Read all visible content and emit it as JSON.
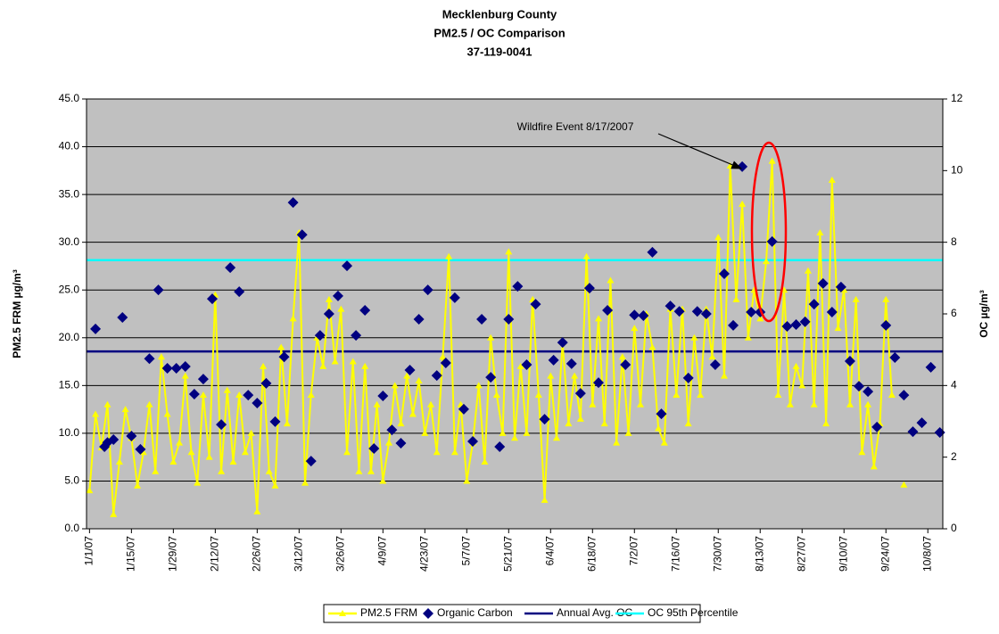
{
  "chart_data": {
    "type": "line",
    "title": [
      "Mecklenburg County",
      "PM2.5 / OC Comparison",
      "37-119-0041"
    ],
    "y_label": "PM2.5 FRM µg/m³",
    "y2_label": "OC µg/m³",
    "xlim": [
      "2006-12-31",
      "2007-10-13"
    ],
    "xticks": [
      {
        "value": "2007-01-01",
        "label": "1/1/07"
      },
      {
        "value": "2007-01-15",
        "label": "1/15/07"
      },
      {
        "value": "2007-01-29",
        "label": "1/29/07"
      },
      {
        "value": "2007-02-12",
        "label": "2/12/07"
      },
      {
        "value": "2007-02-26",
        "label": "2/26/07"
      },
      {
        "value": "2007-03-12",
        "label": "3/12/07"
      },
      {
        "value": "2007-03-26",
        "label": "3/26/07"
      },
      {
        "value": "2007-04-09",
        "label": "4/9/07"
      },
      {
        "value": "2007-04-23",
        "label": "4/23/07"
      },
      {
        "value": "2007-05-07",
        "label": "5/7/07"
      },
      {
        "value": "2007-05-21",
        "label": "5/21/07"
      },
      {
        "value": "2007-06-04",
        "label": "6/4/07"
      },
      {
        "value": "2007-06-18",
        "label": "6/18/07"
      },
      {
        "value": "2007-07-02",
        "label": "7/2/07"
      },
      {
        "value": "2007-07-16",
        "label": "7/16/07"
      },
      {
        "value": "2007-07-30",
        "label": "7/30/07"
      },
      {
        "value": "2007-08-13",
        "label": "8/13/07"
      },
      {
        "value": "2007-08-27",
        "label": "8/27/07"
      },
      {
        "value": "2007-09-10",
        "label": "9/10/07"
      },
      {
        "value": "2007-09-24",
        "label": "9/24/07"
      },
      {
        "value": "2007-10-08",
        "label": "10/8/07"
      }
    ],
    "ylim": [
      0,
      45
    ],
    "yticks": [
      {
        "value": 0,
        "label": "0.0"
      },
      {
        "value": 5,
        "label": "5.0"
      },
      {
        "value": 10,
        "label": "10.0"
      },
      {
        "value": 15,
        "label": "15.0"
      },
      {
        "value": 20,
        "label": "20.0"
      },
      {
        "value": 25,
        "label": "25.0"
      },
      {
        "value": 30,
        "label": "30.0"
      },
      {
        "value": 35,
        "label": "35.0"
      },
      {
        "value": 40,
        "label": "40.0"
      },
      {
        "value": 45,
        "label": "45.0"
      }
    ],
    "y2lim": [
      0,
      12
    ],
    "y2ticks": [
      0,
      2,
      4,
      6,
      8,
      10,
      12
    ],
    "grid": true,
    "legend": "bottom",
    "series": [
      {
        "name": "PM2.5 FRM",
        "type": "line",
        "marker": "triangle",
        "color": "#ffff00",
        "x": [
          "2007-01-01",
          "2007-01-03",
          "2007-01-05",
          "2007-01-07",
          "2007-01-09",
          "2007-01-11",
          "2007-01-13",
          "2007-01-15",
          "2007-01-17",
          "2007-01-19",
          "2007-01-21",
          "2007-01-23",
          "2007-01-25",
          "2007-01-27",
          "2007-01-29",
          "2007-01-31",
          "2007-02-02",
          "2007-02-04",
          "2007-02-06",
          "2007-02-08",
          "2007-02-10",
          "2007-02-12",
          "2007-02-14",
          "2007-02-16",
          "2007-02-18",
          "2007-02-20",
          "2007-02-22",
          "2007-02-24",
          "2007-02-26",
          "2007-02-28",
          "2007-03-02",
          "2007-03-04",
          "2007-03-06",
          "2007-03-08",
          "2007-03-10",
          "2007-03-12",
          "2007-03-14",
          "2007-03-16",
          "2007-03-18",
          "2007-03-20",
          "2007-03-22",
          "2007-03-24",
          "2007-03-26",
          "2007-03-28",
          "2007-03-30",
          "2007-04-01",
          "2007-04-03",
          "2007-04-05",
          "2007-04-07",
          "2007-04-09",
          "2007-04-11",
          "2007-04-13",
          "2007-04-15",
          "2007-04-17",
          "2007-04-19",
          "2007-04-21",
          "2007-04-23",
          "2007-04-25",
          "2007-04-27",
          "2007-04-29",
          "2007-05-01",
          "2007-05-03",
          "2007-05-05",
          "2007-05-07",
          "2007-05-09",
          "2007-05-11",
          "2007-05-13",
          "2007-05-15",
          "2007-05-17",
          "2007-05-19",
          "2007-05-21",
          "2007-05-23",
          "2007-05-25",
          "2007-05-27",
          "2007-05-29",
          "2007-05-31",
          "2007-06-02",
          "2007-06-04",
          "2007-06-06",
          "2007-06-08",
          "2007-06-10",
          "2007-06-12",
          "2007-06-14",
          "2007-06-16",
          "2007-06-18",
          "2007-06-20",
          "2007-06-22",
          "2007-06-24",
          "2007-06-26",
          "2007-06-28",
          "2007-06-30",
          "2007-07-02",
          "2007-07-04",
          "2007-07-06",
          "2007-07-08",
          "2007-07-10",
          "2007-07-12",
          "2007-07-14",
          "2007-07-16",
          "2007-07-18",
          "2007-07-20",
          "2007-07-22",
          "2007-07-24",
          "2007-07-26",
          "2007-07-28",
          "2007-07-30",
          "2007-08-01",
          "2007-08-03",
          "2007-08-05",
          "2007-08-07",
          "2007-08-09",
          "2007-08-11",
          "2007-08-13",
          "2007-08-15",
          "2007-08-17",
          "2007-08-19",
          "2007-08-21",
          "2007-08-23",
          "2007-08-25",
          "2007-08-27",
          "2007-08-29",
          "2007-08-31",
          "2007-09-02",
          "2007-09-04",
          "2007-09-06",
          "2007-09-08",
          "2007-09-10",
          "2007-09-12",
          "2007-09-14",
          "2007-09-16",
          "2007-09-18",
          "2007-09-20",
          "2007-09-22",
          "2007-09-24",
          "2007-09-26",
          "2007-09-28",
          "2007-09-30"
        ],
        "values": [
          4,
          12,
          8.5,
          13,
          1.5,
          7,
          12.5,
          9.5,
          4.5,
          8,
          13,
          6,
          18,
          12,
          7,
          9,
          16,
          8,
          4.8,
          14,
          7.5,
          24.5,
          6,
          14.5,
          7,
          14,
          8,
          10,
          1.8,
          17,
          6,
          4.5,
          19,
          11,
          22,
          31,
          4.8,
          14,
          20,
          17,
          24,
          17.5,
          23,
          8,
          17.5,
          6,
          17,
          6,
          13,
          5,
          9,
          15,
          11,
          16,
          12,
          15.5,
          10,
          13,
          8,
          18,
          28.5,
          8,
          13,
          5,
          9,
          15,
          7,
          20,
          14,
          10,
          29,
          9.5,
          17,
          10,
          24,
          14,
          3,
          16,
          9.5,
          19.5,
          11,
          16,
          11.5,
          28.5,
          13,
          22,
          11,
          26,
          9,
          18,
          10,
          21,
          13,
          22.5,
          19,
          10.5,
          9,
          23,
          14,
          23,
          11,
          20,
          14,
          23,
          18,
          30.5,
          16,
          38,
          24,
          34,
          20,
          25,
          22,
          28,
          38.5,
          14,
          25,
          13,
          17,
          15,
          27,
          13,
          31,
          11,
          36.5,
          21,
          25,
          13,
          24,
          8,
          13,
          6.5,
          11,
          24,
          14,
          null,
          4.6
        ]
      },
      {
        "name": "Organic Carbon",
        "type": "scatter",
        "marker": "diamond",
        "color": "#000080",
        "axis": "y2",
        "x": [
          "2007-01-03",
          "2007-01-06",
          "2007-01-07",
          "2007-01-09",
          "2007-01-12",
          "2007-01-15",
          "2007-01-18",
          "2007-01-21",
          "2007-01-24",
          "2007-01-27",
          "2007-01-30",
          "2007-02-02",
          "2007-02-05",
          "2007-02-08",
          "2007-02-11",
          "2007-02-14",
          "2007-02-17",
          "2007-02-20",
          "2007-02-23",
          "2007-02-26",
          "2007-03-01",
          "2007-03-04",
          "2007-03-07",
          "2007-03-10",
          "2007-03-13",
          "2007-03-16",
          "2007-03-19",
          "2007-03-22",
          "2007-03-25",
          "2007-03-28",
          "2007-03-31",
          "2007-04-03",
          "2007-04-06",
          "2007-04-09",
          "2007-04-12",
          "2007-04-15",
          "2007-04-18",
          "2007-04-21",
          "2007-04-24",
          "2007-04-27",
          "2007-04-30",
          "2007-05-03",
          "2007-05-06",
          "2007-05-09",
          "2007-05-12",
          "2007-05-15",
          "2007-05-18",
          "2007-05-21",
          "2007-05-24",
          "2007-05-27",
          "2007-05-30",
          "2007-06-02",
          "2007-06-05",
          "2007-06-08",
          "2007-06-11",
          "2007-06-14",
          "2007-06-17",
          "2007-06-20",
          "2007-06-23",
          "2007-06-29",
          "2007-07-02",
          "2007-07-05",
          "2007-07-08",
          "2007-07-11",
          "2007-07-14",
          "2007-07-17",
          "2007-07-20",
          "2007-07-23",
          "2007-07-26",
          "2007-07-29",
          "2007-08-01",
          "2007-08-04",
          "2007-08-07",
          "2007-08-10",
          "2007-08-13",
          "2007-08-17",
          "2007-08-22",
          "2007-08-25",
          "2007-08-28",
          "2007-08-31",
          "2007-09-03",
          "2007-09-06",
          "2007-09-09",
          "2007-09-12",
          "2007-09-15",
          "2007-09-18",
          "2007-09-21",
          "2007-09-24",
          "2007-09-27",
          "2007-09-30",
          "2007-10-03",
          "2007-10-06",
          "2007-10-09",
          "2007-10-12"
        ],
        "values": [
          5.58,
          2.29,
          2.41,
          2.49,
          5.9,
          2.59,
          2.22,
          4.75,
          6.67,
          4.48,
          4.48,
          4.53,
          3.76,
          4.18,
          6.42,
          2.91,
          7.29,
          6.62,
          3.73,
          3.51,
          4.06,
          2.99,
          4.8,
          9.11,
          8.21,
          1.89,
          5.4,
          6.0,
          6.5,
          7.34,
          5.4,
          6.1,
          2.24,
          3.71,
          2.76,
          2.39,
          4.43,
          5.85,
          6.67,
          4.28,
          4.63,
          6.45,
          3.34,
          2.44,
          5.85,
          4.23,
          2.29,
          5.85,
          6.77,
          4.58,
          6.27,
          3.06,
          4.71,
          5.2,
          4.61,
          3.78,
          6.72,
          4.08,
          6.1,
          4.58,
          5.97,
          5.95,
          7.72,
          3.21,
          6.22,
          6.07,
          4.21,
          6.07,
          6.0,
          4.58,
          7.12,
          5.68,
          10.11,
          6.05,
          6.05,
          8.02,
          5.65,
          5.7,
          5.78,
          6.27,
          6.85,
          6.05,
          6.75,
          4.68,
          3.98,
          3.83,
          2.84,
          5.68,
          4.78,
          3.73,
          2.71,
          2.96,
          4.51,
          2.69
        ]
      },
      {
        "name": "Annual Avg. OC",
        "type": "hline",
        "color": "#000080",
        "axis": "y2",
        "value": 4.95
      },
      {
        "name": "OC 95th Percentile",
        "type": "hline",
        "color": "#00ffff",
        "axis": "y2",
        "value": 7.5
      }
    ],
    "annotations": [
      {
        "text": "Wildfire Event 8/17/2007"
      }
    ]
  }
}
